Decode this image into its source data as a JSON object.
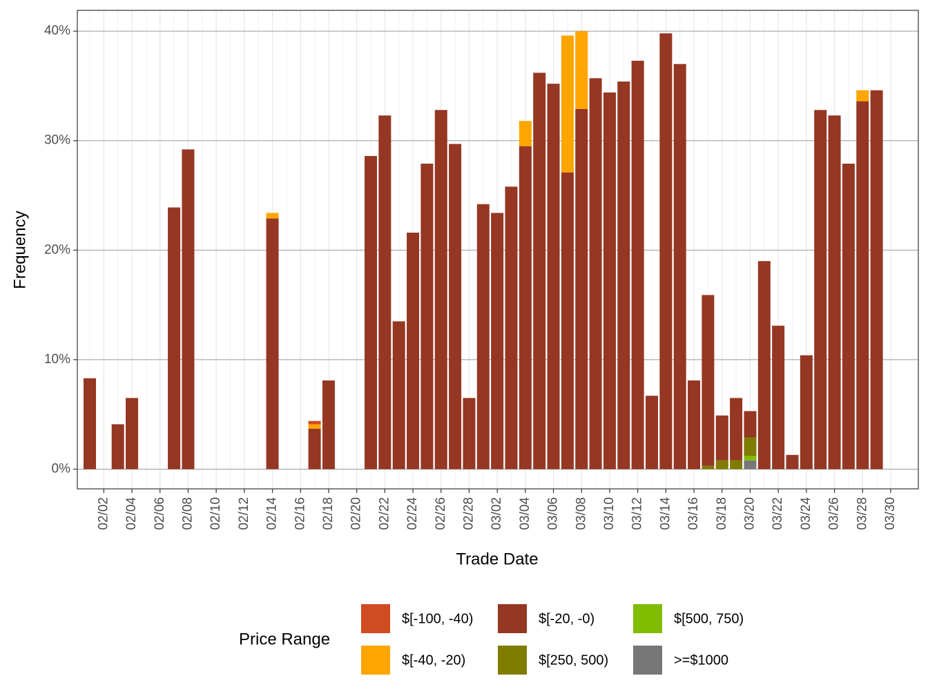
{
  "chart_data": {
    "type": "stacked-bar",
    "y_label": "Frequency",
    "x_label": "Trade Date",
    "legend_title": "Price Range",
    "categories": [
      null,
      "02/02",
      null,
      "02/04",
      null,
      "02/06",
      null,
      "02/08",
      null,
      "02/10",
      null,
      "02/12",
      null,
      "02/14",
      null,
      "02/16",
      null,
      "02/18",
      null,
      "02/20",
      null,
      "02/22",
      null,
      "02/24",
      null,
      "02/26",
      null,
      "02/28",
      null,
      "03/02",
      null,
      "03/04",
      null,
      "03/06",
      null,
      "03/08",
      null,
      "03/10",
      null,
      "03/12",
      null,
      "03/14",
      null,
      "03/16",
      null,
      "03/18",
      null,
      "03/20",
      null,
      "03/22",
      null,
      "03/24",
      null,
      "03/26",
      null,
      "03/28",
      null,
      "03/30"
    ],
    "series": [
      {
        "name": "$[-100, -40)",
        "color": "#d04a22",
        "values": [
          0,
          0,
          0,
          0,
          0,
          0,
          0,
          0,
          0,
          0,
          0,
          0,
          0,
          0,
          0,
          0,
          0.3,
          0,
          0,
          0,
          0,
          0,
          0,
          0,
          0,
          0,
          0,
          0,
          0,
          0,
          0,
          0,
          0,
          0,
          0,
          0,
          0,
          0,
          0,
          0,
          0,
          0,
          0,
          0,
          0,
          0,
          0,
          0,
          0,
          0,
          0,
          0,
          0,
          0,
          0,
          0,
          0,
          0
        ]
      },
      {
        "name": "$[-40, -20)",
        "color": "#ffa500",
        "values": [
          0,
          0,
          0,
          0,
          0,
          0,
          0,
          0,
          0,
          0,
          0,
          0,
          0,
          0.5,
          0,
          0,
          0.4,
          0,
          0,
          0,
          0,
          0,
          0,
          0,
          0,
          0,
          0,
          0,
          0,
          0,
          0,
          2.3,
          0,
          0,
          12.5,
          7.1,
          0,
          0,
          0,
          0,
          0,
          0,
          0,
          0,
          0,
          0,
          0,
          0,
          0,
          0,
          0,
          0,
          0,
          0,
          0,
          1.0,
          0,
          0
        ]
      },
      {
        "name": "$[-20, -0)",
        "color": "#953723",
        "values": [
          8.3,
          0,
          4.1,
          6.5,
          0,
          0,
          23.9,
          29.2,
          0,
          0,
          0,
          0,
          0,
          22.9,
          0,
          0,
          3.7,
          8.1,
          0,
          0,
          28.6,
          32.3,
          13.5,
          21.6,
          27.9,
          32.8,
          29.7,
          6.5,
          24.2,
          23.4,
          25.8,
          29.5,
          36.2,
          35.2,
          27.1,
          32.9,
          35.7,
          34.4,
          35.4,
          37.3,
          6.7,
          39.8,
          37.0,
          8.1,
          15.6,
          4.1,
          5.7,
          2.4,
          19.0,
          13.1,
          1.3,
          10.4,
          32.8,
          32.3,
          27.9,
          33.6,
          34.6,
          0
        ]
      },
      {
        "name": "$[250, 500)",
        "color": "#807c00",
        "values": [
          0,
          0,
          0,
          0,
          0,
          0,
          0,
          0,
          0,
          0,
          0,
          0,
          0,
          0,
          0,
          0,
          0,
          0,
          0,
          0,
          0,
          0,
          0,
          0,
          0,
          0,
          0,
          0,
          0,
          0,
          0,
          0,
          0,
          0,
          0,
          0,
          0,
          0,
          0,
          0,
          0,
          0,
          0,
          0,
          0.3,
          0.8,
          0.8,
          1.7,
          0,
          0,
          0,
          0,
          0,
          0,
          0,
          0,
          0,
          0
        ]
      },
      {
        "name": "$[500, 750)",
        "color": "#80bc00",
        "values": [
          0,
          0,
          0,
          0,
          0,
          0,
          0,
          0,
          0,
          0,
          0,
          0,
          0,
          0,
          0,
          0,
          0,
          0,
          0,
          0,
          0,
          0,
          0,
          0,
          0,
          0,
          0,
          0,
          0,
          0,
          0,
          0,
          0,
          0,
          0,
          0,
          0,
          0,
          0,
          0,
          0,
          0,
          0,
          0,
          0,
          0,
          0,
          0.4,
          0,
          0,
          0,
          0,
          0,
          0,
          0,
          0,
          0,
          0
        ]
      },
      {
        "name": ">=$1000",
        "color": "#777777",
        "values": [
          0,
          0,
          0,
          0,
          0,
          0,
          0,
          0,
          0,
          0,
          0,
          0,
          0,
          0,
          0,
          0,
          0,
          0,
          0,
          0,
          0,
          0,
          0,
          0,
          0,
          0,
          0,
          0,
          0,
          0,
          0,
          0,
          0,
          0,
          0,
          0,
          0,
          0,
          0,
          0,
          0,
          0,
          0,
          0,
          0,
          0,
          0,
          0.8,
          0,
          0,
          0,
          0,
          0,
          0,
          0,
          0,
          0,
          0
        ]
      }
    ],
    "ylim": [
      -1.8,
      41.9
    ],
    "yticks": [
      {
        "value": 0,
        "label": "0%"
      },
      {
        "value": 10,
        "label": "10%"
      },
      {
        "value": 20,
        "label": "20%"
      },
      {
        "value": 30,
        "label": "30%"
      },
      {
        "value": 40,
        "label": "40%"
      }
    ],
    "grid": true,
    "legend": "bottom"
  }
}
